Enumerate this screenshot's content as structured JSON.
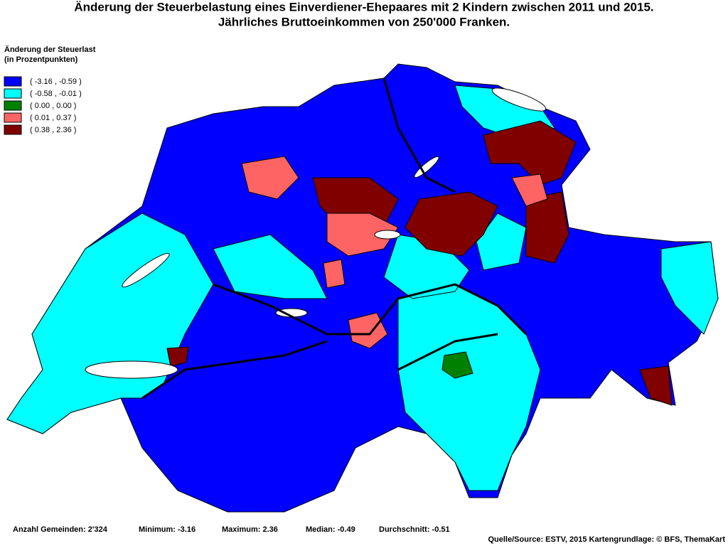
{
  "header": {
    "title_lines": [
      "Änderung der Steuerbelastung eines Einverdiener-Ehepaares mit 2 Kindern zwischen 2011 und 2015.",
      "Jährliches Bruttoeinkommen von 250'000 Franken."
    ]
  },
  "legend": {
    "title_lines": [
      "Änderung der Steuerlast",
      "(in Prozentpunkten)"
    ],
    "items": [
      {
        "label": "( -3.16 , -0.59 )",
        "color": "#0000ff"
      },
      {
        "label": "( -0.58 , -0.01 )",
        "color": "#00ffff"
      },
      {
        "label": "( 0.00 , 0.00 )",
        "color": "#008000"
      },
      {
        "label": "( 0.01 , 0.37 )",
        "color": "#ff6464"
      },
      {
        "label": "( 0.38 , 2.36 )",
        "color": "#800000"
      }
    ]
  },
  "footer": {
    "stats": [
      "Anzahl Gemeinden: 2'324",
      "Minimum: -3.16",
      "Maximum: 2.36",
      "Median: -0.49",
      "Durchschnitt: -0.51"
    ],
    "source": "Quelle/Source: ESTV, 2015 Kartengrundlage: © BFS, ThemaKart"
  }
}
